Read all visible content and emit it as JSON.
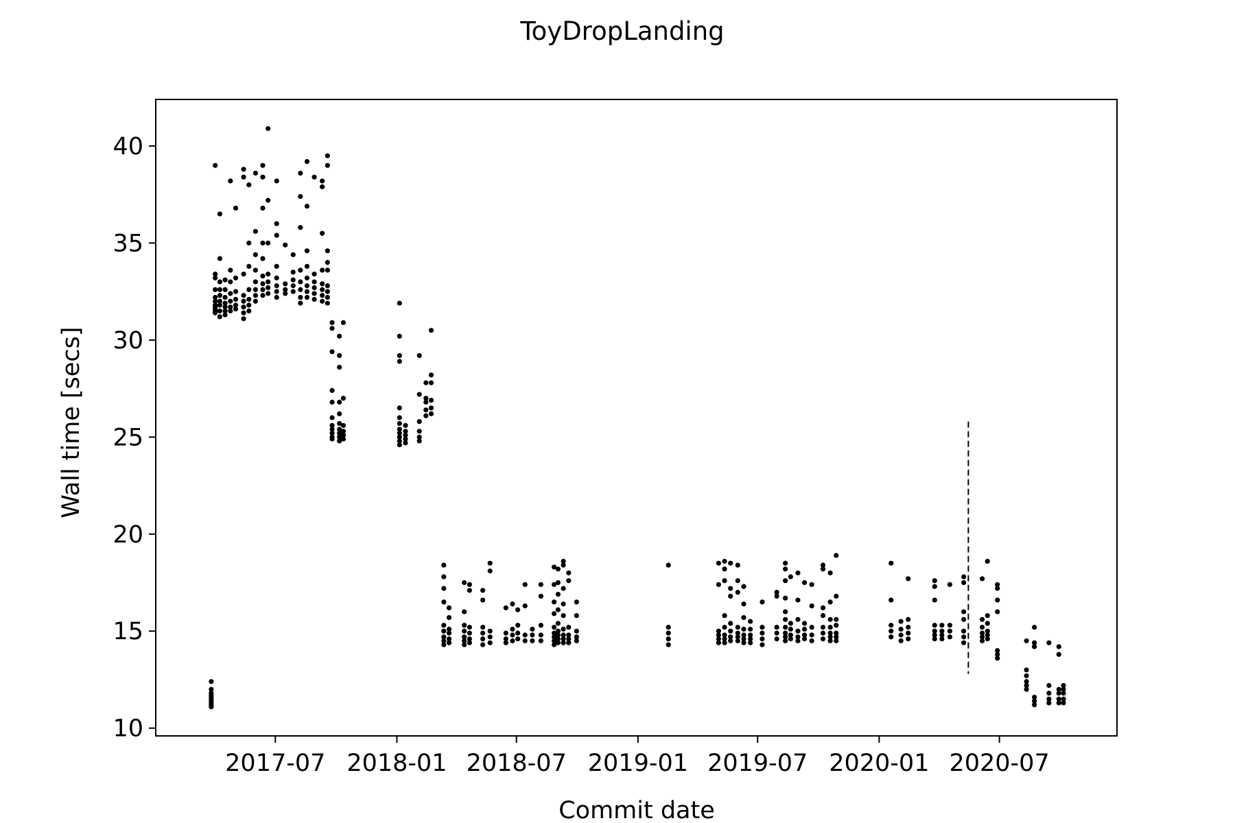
{
  "chart_data": {
    "type": "scatter",
    "title": "ToyDropLanding",
    "xlabel": "Commit date",
    "ylabel": "Wall time [secs]",
    "xlim": [
      "2017-01-01",
      "2020-12-26"
    ],
    "ylim": [
      9.6,
      42.4
    ],
    "x_ticks": [
      "2017-07",
      "2018-01",
      "2018-07",
      "2019-01",
      "2019-07",
      "2020-01",
      "2020-07"
    ],
    "y_ticks": [
      10,
      15,
      20,
      25,
      30,
      35,
      40
    ],
    "grid": false,
    "legend": "none",
    "marker_color": "#000000",
    "vline": {
      "x": "2020-05-15",
      "ymin": 12.8,
      "ymax": 25.8,
      "style": "dashed"
    },
    "clusters": [
      {
        "x": "2017-03-26",
        "values": [
          11.1,
          11.2,
          11.3,
          11.4,
          11.5,
          11.6,
          11.7,
          11.8,
          12.0,
          12.4
        ]
      },
      {
        "x": "2017-04-01",
        "values": [
          31.4,
          31.5,
          31.6,
          31.7,
          31.8,
          32.0,
          32.2,
          32.6,
          33.2,
          33.4,
          39.0
        ]
      },
      {
        "x": "2017-04-08",
        "values": [
          31.2,
          31.5,
          31.8,
          32.0,
          32.3,
          32.6,
          33.0,
          34.2,
          36.5
        ]
      },
      {
        "x": "2017-04-16",
        "values": [
          31.3,
          31.5,
          31.7,
          31.9,
          32.2,
          32.6,
          33.1
        ]
      },
      {
        "x": "2017-04-24",
        "values": [
          31.5,
          31.7,
          32.0,
          32.4,
          33.0,
          33.6,
          38.2
        ]
      },
      {
        "x": "2017-05-02",
        "values": [
          31.6,
          31.8,
          32.1,
          32.5,
          33.2,
          36.8
        ]
      },
      {
        "x": "2017-05-14",
        "values": [
          31.1,
          31.4,
          31.7,
          32.0,
          32.3,
          33.4,
          38.4,
          38.8
        ]
      },
      {
        "x": "2017-05-22",
        "values": [
          31.5,
          31.8,
          32.1,
          32.6,
          33.8,
          35.0,
          38.0
        ]
      },
      {
        "x": "2017-06-01",
        "values": [
          32.0,
          32.3,
          32.6,
          33.0,
          33.6,
          34.4,
          35.6,
          38.6
        ]
      },
      {
        "x": "2017-06-12",
        "values": [
          32.3,
          32.6,
          32.9,
          33.3,
          34.2,
          35.0,
          36.8,
          38.4,
          39.0
        ]
      },
      {
        "x": "2017-06-20",
        "values": [
          32.4,
          32.7,
          33.0,
          33.4,
          35.0,
          37.2,
          40.9
        ]
      },
      {
        "x": "2017-07-03",
        "values": [
          32.2,
          32.5,
          32.8,
          33.2,
          33.8,
          35.4,
          36.0,
          38.2
        ]
      },
      {
        "x": "2017-07-16",
        "values": [
          32.4,
          32.6,
          32.9,
          34.9
        ]
      },
      {
        "x": "2017-07-28",
        "values": [
          32.5,
          32.8,
          33.1,
          33.5,
          34.4
        ]
      },
      {
        "x": "2017-08-08",
        "values": [
          31.9,
          32.2,
          32.6,
          33.0,
          33.6,
          35.8,
          37.4,
          38.6
        ]
      },
      {
        "x": "2017-08-18",
        "values": [
          32.2,
          32.5,
          32.8,
          33.2,
          33.8,
          34.6,
          36.9,
          39.2
        ]
      },
      {
        "x": "2017-08-29",
        "values": [
          32.1,
          32.4,
          32.7,
          33.0,
          33.4,
          38.4
        ]
      },
      {
        "x": "2017-09-10",
        "values": [
          32.0,
          32.3,
          32.6,
          32.9,
          33.6,
          35.5,
          37.9,
          38.2
        ]
      },
      {
        "x": "2017-09-18",
        "values": [
          31.9,
          32.2,
          32.5,
          32.8,
          33.6,
          34.0,
          34.6,
          39.0,
          39.5
        ]
      },
      {
        "x": "2017-09-25",
        "values": [
          24.9,
          25.0,
          25.2,
          25.4,
          25.6,
          26.0,
          26.8,
          27.4,
          29.4,
          30.6,
          30.9
        ]
      },
      {
        "x": "2017-10-06",
        "values": [
          24.8,
          25.0,
          25.2,
          25.4,
          25.7,
          26.2,
          26.8,
          28.6,
          29.2,
          30.2
        ]
      },
      {
        "x": "2017-10-12",
        "values": [
          24.9,
          25.1,
          25.3,
          25.6,
          27.0,
          30.9
        ]
      },
      {
        "x": "2018-01-05",
        "values": [
          24.6,
          24.8,
          25.0,
          25.2,
          25.4,
          25.7,
          26.0,
          26.5,
          28.9,
          29.2,
          30.2,
          31.9
        ]
      },
      {
        "x": "2018-01-14",
        "values": [
          24.7,
          24.9,
          25.1,
          25.3,
          25.6
        ]
      },
      {
        "x": "2018-02-04",
        "values": [
          24.8,
          25.0,
          25.3,
          25.8,
          27.2,
          29.2
        ]
      },
      {
        "x": "2018-02-14",
        "values": [
          26.1,
          26.4,
          26.8,
          27.0,
          27.8
        ]
      },
      {
        "x": "2018-02-22",
        "values": [
          26.2,
          26.5,
          26.9,
          27.8,
          28.2,
          30.5
        ]
      },
      {
        "x": "2018-03-13",
        "values": [
          14.3,
          14.5,
          14.7,
          15.0,
          15.3,
          16.5,
          17.2,
          17.8,
          18.4
        ]
      },
      {
        "x": "2018-03-21",
        "values": [
          14.4,
          14.6,
          14.9,
          15.1,
          15.7,
          16.2
        ]
      },
      {
        "x": "2018-04-13",
        "values": [
          14.3,
          14.5,
          14.7,
          15.0,
          15.3,
          16.0,
          17.5
        ]
      },
      {
        "x": "2018-04-21",
        "values": [
          14.4,
          14.6,
          14.9,
          15.2,
          17.1,
          17.4
        ]
      },
      {
        "x": "2018-05-11",
        "values": [
          14.3,
          14.6,
          14.9,
          15.2,
          16.6,
          17.1
        ]
      },
      {
        "x": "2018-05-22",
        "values": [
          14.4,
          14.7,
          15.0,
          18.1,
          18.5
        ]
      },
      {
        "x": "2018-06-15",
        "values": [
          14.4,
          14.6,
          14.9,
          16.2
        ]
      },
      {
        "x": "2018-06-25",
        "values": [
          14.5,
          14.8,
          15.1,
          16.4
        ]
      },
      {
        "x": "2018-07-03",
        "values": [
          14.6,
          14.9,
          15.3,
          16.1
        ]
      },
      {
        "x": "2018-07-14",
        "values": [
          14.5,
          14.8,
          16.3,
          17.4
        ]
      },
      {
        "x": "2018-07-25",
        "values": [
          14.5,
          14.8,
          15.1
        ]
      },
      {
        "x": "2018-08-07",
        "values": [
          14.5,
          14.8,
          15.3,
          16.8,
          17.4
        ]
      },
      {
        "x": "2018-08-27",
        "values": [
          14.3,
          14.5,
          14.7,
          14.9,
          15.2,
          15.9,
          16.5,
          17.4,
          18.3
        ]
      },
      {
        "x": "2018-09-02",
        "values": [
          14.4,
          14.6,
          14.8,
          15.0,
          15.4,
          16.1,
          16.9,
          17.5,
          18.2
        ]
      },
      {
        "x": "2018-09-10",
        "values": [
          14.4,
          14.6,
          14.8,
          15.1,
          15.8,
          16.4,
          17.2,
          18.4,
          18.6
        ]
      },
      {
        "x": "2018-09-18",
        "values": [
          14.4,
          14.6,
          14.8,
          15.2,
          17.6,
          18.0
        ]
      },
      {
        "x": "2018-09-30",
        "values": [
          14.5,
          14.7,
          15.0,
          15.8,
          16.5
        ]
      },
      {
        "x": "2019-02-16",
        "values": [
          14.3,
          14.6,
          14.9,
          15.2,
          18.4
        ]
      },
      {
        "x": "2019-05-03",
        "values": [
          14.4,
          14.6,
          14.8,
          15.0,
          17.4,
          18.5
        ]
      },
      {
        "x": "2019-05-12",
        "values": [
          14.4,
          14.6,
          14.8,
          15.2,
          15.8,
          17.6,
          18.2,
          18.6
        ]
      },
      {
        "x": "2019-05-21",
        "values": [
          14.5,
          14.7,
          15.0,
          15.4,
          16.8,
          17.2,
          18.5
        ]
      },
      {
        "x": "2019-06-01",
        "values": [
          14.5,
          14.7,
          14.9,
          15.2,
          17.0,
          17.6,
          18.4
        ]
      },
      {
        "x": "2019-06-10",
        "values": [
          14.4,
          14.6,
          14.8,
          15.1,
          15.7,
          16.4,
          17.3
        ]
      },
      {
        "x": "2019-06-20",
        "values": [
          14.4,
          14.6,
          14.8,
          15.1,
          15.5
        ]
      },
      {
        "x": "2019-07-08",
        "values": [
          14.3,
          14.6,
          14.9,
          15.2,
          16.5
        ]
      },
      {
        "x": "2019-07-30",
        "values": [
          14.6,
          14.9,
          15.2,
          16.8,
          17.0
        ]
      },
      {
        "x": "2019-08-12",
        "values": [
          14.5,
          14.7,
          14.9,
          15.2,
          15.6,
          16.0,
          16.7,
          17.6,
          18.2,
          18.5
        ]
      },
      {
        "x": "2019-08-20",
        "values": [
          14.6,
          14.8,
          15.1,
          15.4,
          17.8
        ]
      },
      {
        "x": "2019-08-31",
        "values": [
          14.5,
          14.7,
          15.0,
          15.6,
          16.6,
          18.0
        ]
      },
      {
        "x": "2019-09-10",
        "values": [
          14.6,
          14.8,
          15.1,
          15.4,
          17.5
        ]
      },
      {
        "x": "2019-09-21",
        "values": [
          14.5,
          14.8,
          15.2,
          16.3,
          17.4
        ]
      },
      {
        "x": "2019-10-08",
        "values": [
          14.6,
          14.9,
          15.2,
          15.8,
          16.2,
          18.2,
          18.4
        ]
      },
      {
        "x": "2019-10-19",
        "values": [
          14.5,
          14.7,
          14.9,
          15.2,
          15.6,
          16.5,
          18.0
        ]
      },
      {
        "x": "2019-10-28",
        "values": [
          14.5,
          14.7,
          14.9,
          15.3,
          15.6,
          16.8,
          18.9
        ]
      },
      {
        "x": "2020-01-19",
        "values": [
          14.7,
          15.0,
          15.3,
          16.6,
          18.5
        ]
      },
      {
        "x": "2020-02-03",
        "values": [
          14.5,
          14.8,
          15.1,
          15.5
        ]
      },
      {
        "x": "2020-02-14",
        "values": [
          14.6,
          14.9,
          15.2,
          15.6,
          17.7
        ]
      },
      {
        "x": "2020-03-25",
        "values": [
          14.6,
          14.8,
          15.0,
          15.3,
          16.6,
          17.3,
          17.6
        ]
      },
      {
        "x": "2020-04-05",
        "values": [
          14.6,
          14.8,
          15.0,
          15.3
        ]
      },
      {
        "x": "2020-04-17",
        "values": [
          14.7,
          15.0,
          15.3,
          17.4
        ]
      },
      {
        "x": "2020-05-08",
        "values": [
          14.4,
          14.7,
          15.0,
          15.6,
          16.0,
          17.5,
          17.8
        ]
      },
      {
        "x": "2020-06-05",
        "values": [
          14.5,
          14.7,
          14.9,
          15.2,
          15.6,
          17.7
        ]
      },
      {
        "x": "2020-06-13",
        "values": [
          14.6,
          14.8,
          15.0,
          15.4,
          15.8,
          18.6
        ]
      },
      {
        "x": "2020-06-28",
        "values": [
          13.6,
          13.8,
          14.0,
          16.0,
          16.6,
          17.2,
          17.4
        ]
      },
      {
        "x": "2020-08-11",
        "values": [
          12.0,
          12.2,
          12.4,
          12.7,
          13.0,
          14.5
        ]
      },
      {
        "x": "2020-08-23",
        "values": [
          11.2,
          11.4,
          11.6,
          14.2,
          14.4,
          15.2
        ]
      },
      {
        "x": "2020-09-14",
        "values": [
          11.3,
          11.5,
          11.8,
          12.2,
          14.4
        ]
      },
      {
        "x": "2020-09-29",
        "values": [
          11.3,
          11.5,
          11.8,
          12.0,
          13.8,
          14.2
        ]
      },
      {
        "x": "2020-10-06",
        "values": [
          11.3,
          11.5,
          11.8,
          12.0,
          12.2
        ]
      }
    ]
  }
}
